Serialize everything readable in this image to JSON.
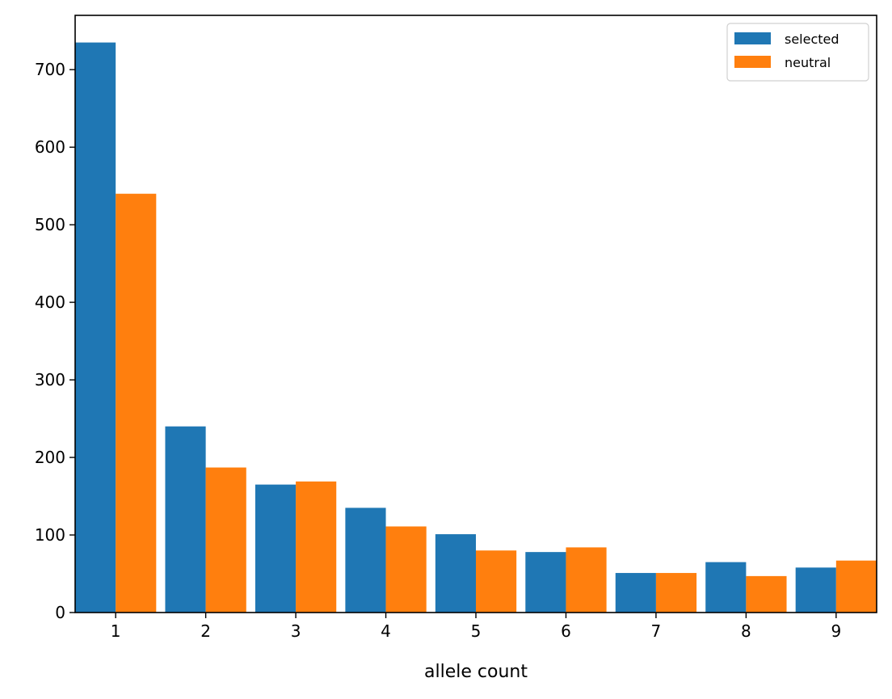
{
  "chart_data": {
    "type": "bar",
    "categories": [
      "1",
      "2",
      "3",
      "4",
      "5",
      "6",
      "7",
      "8",
      "9"
    ],
    "series": [
      {
        "name": "selected",
        "color": "#1f77b4",
        "values": [
          735,
          240,
          165,
          135,
          101,
          78,
          51,
          65,
          58
        ]
      },
      {
        "name": "neutral",
        "color": "#ff7f0e",
        "values": [
          540,
          187,
          169,
          111,
          80,
          84,
          51,
          47,
          67
        ]
      }
    ],
    "xlabel": "allele count",
    "ylabel": "",
    "ylim": [
      0,
      770
    ],
    "yticks": [
      0,
      100,
      200,
      300,
      400,
      500,
      600,
      700
    ],
    "legend": "top-right",
    "grid": false
  }
}
